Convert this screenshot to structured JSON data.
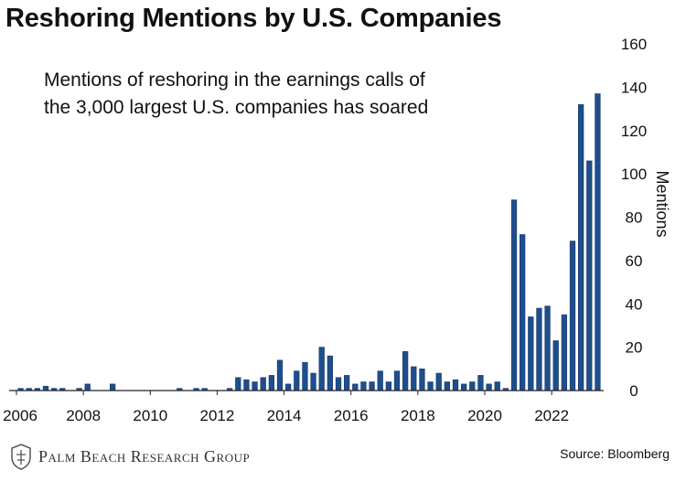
{
  "title": "Reshoring Mentions by U.S. Companies",
  "annotation_lines": [
    "Mentions of reshoring in the earnings calls of",
    "the 3,000 largest U.S. companies has soared"
  ],
  "source": "Source: Bloomberg",
  "brand": "Palm Beach Research Group",
  "colors": {
    "bar": "#1f4e8c",
    "bar_edge": "#163a6b",
    "axis": "#222222"
  },
  "chart_data": {
    "type": "bar",
    "title": "Reshoring Mentions by U.S. Companies",
    "ylabel": "Mentions",
    "y_axis_side": "right",
    "ylim": [
      0,
      160
    ],
    "yticks": [
      0,
      20,
      40,
      60,
      80,
      100,
      120,
      140,
      160
    ],
    "xticks": [
      "2006",
      "2008",
      "2010",
      "2012",
      "2014",
      "2016",
      "2018",
      "2020",
      "2022"
    ],
    "x_start_year": 2006,
    "bars_per_year": 4,
    "grid": false,
    "values": [
      1,
      1,
      1,
      2,
      1,
      1,
      0,
      1,
      3,
      0,
      0,
      3,
      0,
      0,
      0,
      0,
      0,
      0,
      0,
      1,
      0,
      1,
      1,
      0,
      0,
      1,
      6,
      5,
      4,
      6,
      7,
      14,
      3,
      9,
      13,
      8,
      20,
      16,
      6,
      7,
      3,
      4,
      4,
      9,
      4,
      9,
      18,
      11,
      10,
      4,
      8,
      4,
      5,
      3,
      4,
      7,
      3,
      4,
      1,
      88,
      72,
      34,
      38,
      39,
      23,
      35,
      69,
      132,
      106,
      137
    ]
  }
}
